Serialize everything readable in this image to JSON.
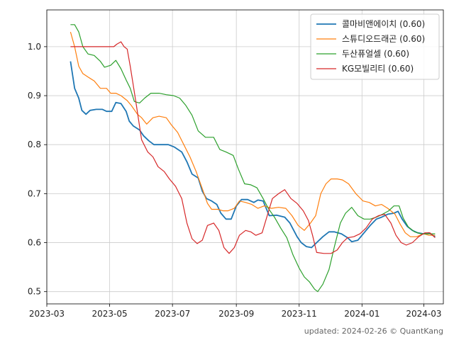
{
  "chart_data": {
    "type": "line",
    "title": "",
    "xlabel": "",
    "ylabel": "",
    "xlim": [
      "2023-03-01",
      "2024-03-20"
    ],
    "ylim": [
      0.475,
      1.075
    ],
    "grid": true,
    "legend_position": "top-right",
    "x_ticks": [
      {
        "date": "2023-03-01",
        "label": "2023-03"
      },
      {
        "date": "2023-05-01",
        "label": "2023-05"
      },
      {
        "date": "2023-07-01",
        "label": "2023-07"
      },
      {
        "date": "2023-09-01",
        "label": "2023-09"
      },
      {
        "date": "2023-11-01",
        "label": "2023-11"
      },
      {
        "date": "2024-01-01",
        "label": "2024-01"
      },
      {
        "date": "2024-03-01",
        "label": "2024-03"
      }
    ],
    "y_ticks": [
      0.5,
      0.6,
      0.7,
      0.8,
      0.9,
      1.0
    ],
    "y_tick_labels": [
      "0.5",
      "0.6",
      "0.7",
      "0.8",
      "0.9",
      "1.0"
    ],
    "series": [
      {
        "name": "콜마비앤에이치 (0.60)",
        "color": "#1f77b4",
        "points": [
          [
            "2023-03-24",
            0.97
          ],
          [
            "2023-03-28",
            0.915
          ],
          [
            "2023-04-01",
            0.895
          ],
          [
            "2023-04-04",
            0.87
          ],
          [
            "2023-04-08",
            0.862
          ],
          [
            "2023-04-12",
            0.87
          ],
          [
            "2023-04-18",
            0.872
          ],
          [
            "2023-04-24",
            0.872
          ],
          [
            "2023-04-28",
            0.868
          ],
          [
            "2023-05-03",
            0.868
          ],
          [
            "2023-05-07",
            0.886
          ],
          [
            "2023-05-12",
            0.884
          ],
          [
            "2023-05-17",
            0.868
          ],
          [
            "2023-05-20",
            0.848
          ],
          [
            "2023-05-24",
            0.838
          ],
          [
            "2023-05-30",
            0.83
          ],
          [
            "2023-06-03",
            0.818
          ],
          [
            "2023-06-08",
            0.808
          ],
          [
            "2023-06-13",
            0.8
          ],
          [
            "2023-06-20",
            0.8
          ],
          [
            "2023-06-27",
            0.8
          ],
          [
            "2023-07-03",
            0.795
          ],
          [
            "2023-07-10",
            0.785
          ],
          [
            "2023-07-15",
            0.765
          ],
          [
            "2023-07-20",
            0.74
          ],
          [
            "2023-07-26",
            0.732
          ],
          [
            "2023-07-30",
            0.705
          ],
          [
            "2023-08-03",
            0.69
          ],
          [
            "2023-08-08",
            0.685
          ],
          [
            "2023-08-13",
            0.678
          ],
          [
            "2023-08-17",
            0.66
          ],
          [
            "2023-08-22",
            0.648
          ],
          [
            "2023-08-27",
            0.648
          ],
          [
            "2023-09-01",
            0.675
          ],
          [
            "2023-09-06",
            0.688
          ],
          [
            "2023-09-12",
            0.688
          ],
          [
            "2023-09-18",
            0.682
          ],
          [
            "2023-09-22",
            0.687
          ],
          [
            "2023-09-27",
            0.685
          ],
          [
            "2023-10-03",
            0.655
          ],
          [
            "2023-10-10",
            0.656
          ],
          [
            "2023-10-18",
            0.652
          ],
          [
            "2023-10-23",
            0.64
          ],
          [
            "2023-10-30",
            0.612
          ],
          [
            "2023-11-03",
            0.6
          ],
          [
            "2023-11-08",
            0.592
          ],
          [
            "2023-11-13",
            0.59
          ],
          [
            "2023-11-18",
            0.6
          ],
          [
            "2023-11-24",
            0.612
          ],
          [
            "2023-11-30",
            0.622
          ],
          [
            "2023-12-05",
            0.622
          ],
          [
            "2023-12-12",
            0.618
          ],
          [
            "2023-12-18",
            0.61
          ],
          [
            "2023-12-22",
            0.602
          ],
          [
            "2023-12-28",
            0.605
          ],
          [
            "2024-01-03",
            0.62
          ],
          [
            "2024-01-09",
            0.635
          ],
          [
            "2024-01-15",
            0.648
          ],
          [
            "2024-01-20",
            0.652
          ],
          [
            "2024-01-26",
            0.658
          ],
          [
            "2024-02-01",
            0.66
          ],
          [
            "2024-02-05",
            0.664
          ],
          [
            "2024-02-09",
            0.648
          ],
          [
            "2024-02-14",
            0.633
          ],
          [
            "2024-02-19",
            0.625
          ],
          [
            "2024-02-24",
            0.62
          ],
          [
            "2024-03-01",
            0.618
          ],
          [
            "2024-03-06",
            0.62
          ],
          [
            "2024-03-12",
            0.612
          ]
        ]
      },
      {
        "name": "스튜디오드래곤 (0.60)",
        "color": "#ff7f0e",
        "points": [
          [
            "2023-03-24",
            1.03
          ],
          [
            "2023-03-28",
            1.0
          ],
          [
            "2023-04-01",
            0.96
          ],
          [
            "2023-04-05",
            0.945
          ],
          [
            "2023-04-10",
            0.938
          ],
          [
            "2023-04-16",
            0.93
          ],
          [
            "2023-04-22",
            0.915
          ],
          [
            "2023-04-28",
            0.915
          ],
          [
            "2023-05-02",
            0.905
          ],
          [
            "2023-05-07",
            0.905
          ],
          [
            "2023-05-12",
            0.9
          ],
          [
            "2023-05-18",
            0.89
          ],
          [
            "2023-05-22",
            0.88
          ],
          [
            "2023-05-28",
            0.862
          ],
          [
            "2023-06-01",
            0.855
          ],
          [
            "2023-06-06",
            0.842
          ],
          [
            "2023-06-12",
            0.855
          ],
          [
            "2023-06-18",
            0.858
          ],
          [
            "2023-06-25",
            0.855
          ],
          [
            "2023-06-30",
            0.84
          ],
          [
            "2023-07-06",
            0.825
          ],
          [
            "2023-07-12",
            0.8
          ],
          [
            "2023-07-18",
            0.775
          ],
          [
            "2023-07-24",
            0.745
          ],
          [
            "2023-07-30",
            0.71
          ],
          [
            "2023-08-04",
            0.68
          ],
          [
            "2023-08-08",
            0.668
          ],
          [
            "2023-08-14",
            0.668
          ],
          [
            "2023-08-19",
            0.665
          ],
          [
            "2023-08-24",
            0.665
          ],
          [
            "2023-08-30",
            0.67
          ],
          [
            "2023-09-04",
            0.685
          ],
          [
            "2023-09-10",
            0.682
          ],
          [
            "2023-09-16",
            0.678
          ],
          [
            "2023-09-22",
            0.67
          ],
          [
            "2023-09-28",
            0.675
          ],
          [
            "2023-10-05",
            0.67
          ],
          [
            "2023-10-12",
            0.672
          ],
          [
            "2023-10-19",
            0.67
          ],
          [
            "2023-10-25",
            0.655
          ],
          [
            "2023-10-31",
            0.635
          ],
          [
            "2023-11-06",
            0.625
          ],
          [
            "2023-11-12",
            0.64
          ],
          [
            "2023-11-17",
            0.655
          ],
          [
            "2023-11-22",
            0.7
          ],
          [
            "2023-11-27",
            0.72
          ],
          [
            "2023-12-02",
            0.73
          ],
          [
            "2023-12-08",
            0.73
          ],
          [
            "2023-12-13",
            0.728
          ],
          [
            "2023-12-19",
            0.72
          ],
          [
            "2023-12-26",
            0.7
          ],
          [
            "2024-01-02",
            0.685
          ],
          [
            "2024-01-08",
            0.682
          ],
          [
            "2024-01-14",
            0.675
          ],
          [
            "2024-01-20",
            0.678
          ],
          [
            "2024-01-26",
            0.67
          ],
          [
            "2024-02-02",
            0.658
          ],
          [
            "2024-02-07",
            0.638
          ],
          [
            "2024-02-12",
            0.62
          ],
          [
            "2024-02-17",
            0.612
          ],
          [
            "2024-02-23",
            0.612
          ],
          [
            "2024-03-01",
            0.618
          ],
          [
            "2024-03-06",
            0.615
          ],
          [
            "2024-03-12",
            0.615
          ]
        ]
      },
      {
        "name": "두산퓨얼셀 (0.60)",
        "color": "#2ca02c",
        "points": [
          [
            "2023-03-24",
            1.045
          ],
          [
            "2023-03-28",
            1.045
          ],
          [
            "2023-04-01",
            1.03
          ],
          [
            "2023-04-05",
            1.0
          ],
          [
            "2023-04-10",
            0.985
          ],
          [
            "2023-04-16",
            0.982
          ],
          [
            "2023-04-22",
            0.97
          ],
          [
            "2023-04-26",
            0.958
          ],
          [
            "2023-05-02",
            0.962
          ],
          [
            "2023-05-07",
            0.972
          ],
          [
            "2023-05-12",
            0.955
          ],
          [
            "2023-05-17",
            0.932
          ],
          [
            "2023-05-21",
            0.915
          ],
          [
            "2023-05-25",
            0.888
          ],
          [
            "2023-05-30",
            0.885
          ],
          [
            "2023-06-04",
            0.895
          ],
          [
            "2023-06-10",
            0.905
          ],
          [
            "2023-06-18",
            0.905
          ],
          [
            "2023-06-25",
            0.902
          ],
          [
            "2023-07-02",
            0.9
          ],
          [
            "2023-07-08",
            0.895
          ],
          [
            "2023-07-14",
            0.88
          ],
          [
            "2023-07-20",
            0.86
          ],
          [
            "2023-07-26",
            0.828
          ],
          [
            "2023-08-02",
            0.815
          ],
          [
            "2023-08-10",
            0.815
          ],
          [
            "2023-08-16",
            0.79
          ],
          [
            "2023-08-22",
            0.785
          ],
          [
            "2023-08-29",
            0.778
          ],
          [
            "2023-09-03",
            0.75
          ],
          [
            "2023-09-09",
            0.72
          ],
          [
            "2023-09-15",
            0.718
          ],
          [
            "2023-09-21",
            0.712
          ],
          [
            "2023-09-27",
            0.69
          ],
          [
            "2023-10-02",
            0.67
          ],
          [
            "2023-10-08",
            0.652
          ],
          [
            "2023-10-14",
            0.63
          ],
          [
            "2023-10-20",
            0.61
          ],
          [
            "2023-10-26",
            0.575
          ],
          [
            "2023-11-01",
            0.548
          ],
          [
            "2023-11-06",
            0.53
          ],
          [
            "2023-11-11",
            0.52
          ],
          [
            "2023-11-16",
            0.505
          ],
          [
            "2023-11-19",
            0.5
          ],
          [
            "2023-11-24",
            0.515
          ],
          [
            "2023-11-30",
            0.545
          ],
          [
            "2023-12-05",
            0.59
          ],
          [
            "2023-12-11",
            0.64
          ],
          [
            "2023-12-16",
            0.66
          ],
          [
            "2023-12-22",
            0.672
          ],
          [
            "2023-12-28",
            0.655
          ],
          [
            "2024-01-03",
            0.648
          ],
          [
            "2024-01-09",
            0.648
          ],
          [
            "2024-01-15",
            0.652
          ],
          [
            "2024-01-21",
            0.658
          ],
          [
            "2024-01-27",
            0.665
          ],
          [
            "2024-02-01",
            0.675
          ],
          [
            "2024-02-06",
            0.675
          ],
          [
            "2024-02-10",
            0.65
          ],
          [
            "2024-02-15",
            0.632
          ],
          [
            "2024-02-21",
            0.622
          ],
          [
            "2024-02-27",
            0.618
          ],
          [
            "2024-03-04",
            0.618
          ],
          [
            "2024-03-12",
            0.618
          ]
        ]
      },
      {
        "name": "KG모빌리티 (0.60)",
        "color": "#d62728",
        "points": [
          [
            "2023-03-24",
            1.0
          ],
          [
            "2023-04-05",
            1.0
          ],
          [
            "2023-04-15",
            1.0
          ],
          [
            "2023-04-25",
            1.0
          ],
          [
            "2023-05-05",
            1.0
          ],
          [
            "2023-05-08",
            1.005
          ],
          [
            "2023-05-12",
            1.01
          ],
          [
            "2023-05-15",
            1.0
          ],
          [
            "2023-05-18",
            0.995
          ],
          [
            "2023-05-21",
            0.96
          ],
          [
            "2023-05-24",
            0.92
          ],
          [
            "2023-05-27",
            0.88
          ],
          [
            "2023-06-01",
            0.81
          ],
          [
            "2023-06-07",
            0.785
          ],
          [
            "2023-06-12",
            0.775
          ],
          [
            "2023-06-17",
            0.755
          ],
          [
            "2023-06-23",
            0.745
          ],
          [
            "2023-06-28",
            0.73
          ],
          [
            "2023-07-04",
            0.715
          ],
          [
            "2023-07-10",
            0.69
          ],
          [
            "2023-07-15",
            0.64
          ],
          [
            "2023-07-20",
            0.608
          ],
          [
            "2023-07-25",
            0.598
          ],
          [
            "2023-07-30",
            0.605
          ],
          [
            "2023-08-04",
            0.635
          ],
          [
            "2023-08-10",
            0.64
          ],
          [
            "2023-08-15",
            0.625
          ],
          [
            "2023-08-20",
            0.59
          ],
          [
            "2023-08-25",
            0.578
          ],
          [
            "2023-08-30",
            0.59
          ],
          [
            "2023-09-04",
            0.615
          ],
          [
            "2023-09-10",
            0.625
          ],
          [
            "2023-09-15",
            0.622
          ],
          [
            "2023-09-20",
            0.615
          ],
          [
            "2023-09-26",
            0.62
          ],
          [
            "2023-10-01",
            0.655
          ],
          [
            "2023-10-06",
            0.69
          ],
          [
            "2023-10-12",
            0.7
          ],
          [
            "2023-10-18",
            0.708
          ],
          [
            "2023-10-24",
            0.69
          ],
          [
            "2023-10-30",
            0.68
          ],
          [
            "2023-11-05",
            0.665
          ],
          [
            "2023-11-10",
            0.645
          ],
          [
            "2023-11-14",
            0.615
          ],
          [
            "2023-11-18",
            0.58
          ],
          [
            "2023-11-25",
            0.578
          ],
          [
            "2023-12-02",
            0.578
          ],
          [
            "2023-12-08",
            0.585
          ],
          [
            "2023-12-13",
            0.6
          ],
          [
            "2023-12-18",
            0.61
          ],
          [
            "2023-12-24",
            0.612
          ],
          [
            "2023-12-30",
            0.618
          ],
          [
            "2024-01-05",
            0.63
          ],
          [
            "2024-01-11",
            0.648
          ],
          [
            "2024-01-17",
            0.655
          ],
          [
            "2024-01-23",
            0.658
          ],
          [
            "2024-01-29",
            0.64
          ],
          [
            "2024-02-03",
            0.615
          ],
          [
            "2024-02-08",
            0.6
          ],
          [
            "2024-02-13",
            0.595
          ],
          [
            "2024-02-19",
            0.6
          ],
          [
            "2024-02-25",
            0.612
          ],
          [
            "2024-03-02",
            0.62
          ],
          [
            "2024-03-07",
            0.62
          ],
          [
            "2024-03-12",
            0.61
          ]
        ]
      }
    ]
  },
  "footer": "updated: 2024-02-26 © QuantKang"
}
